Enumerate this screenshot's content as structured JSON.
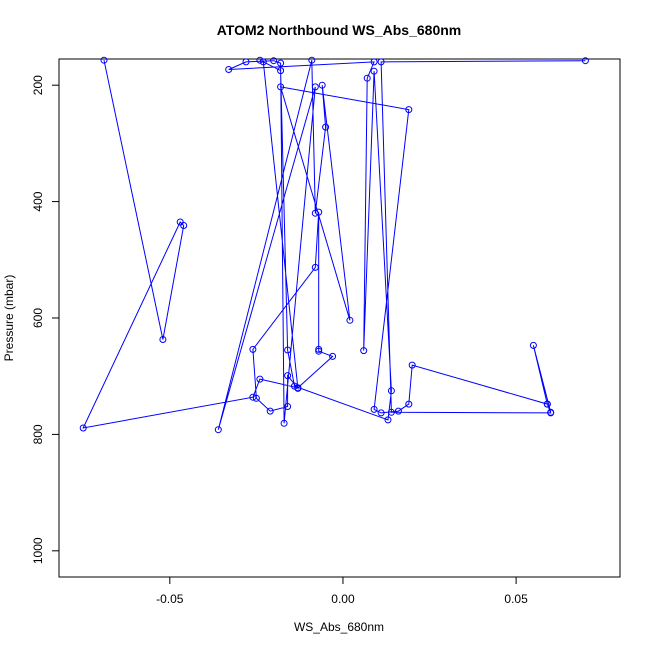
{
  "chart_data": {
    "type": "line",
    "title": "ATOM2 Northbound WS_Abs_680nm",
    "xlabel": "WS_Abs_680nm",
    "ylabel": "Pressure (mbar)",
    "xlim": [
      -0.082,
      0.08
    ],
    "ylim": [
      1045,
      155
    ],
    "y_axis_inverted": true,
    "x_ticks": [
      -0.05,
      0.0,
      0.05
    ],
    "x_tick_labels": [
      "-0.05",
      "0.00",
      "0.05"
    ],
    "y_ticks": [
      200,
      400,
      600,
      800,
      1000
    ],
    "y_tick_labels": [
      "200",
      "400",
      "600",
      "800",
      "1000"
    ],
    "grid": false,
    "legend": "none",
    "series_color": "#0000ff",
    "series": [
      {
        "x": [
          -0.069,
          -0.052,
          -0.046,
          -0.047,
          -0.075,
          -0.026,
          -0.024,
          -0.013,
          -0.003,
          -0.007,
          -0.007,
          -0.007,
          -0.008,
          -0.026,
          -0.025,
          -0.021,
          -0.016,
          -0.016,
          -0.013,
          -0.023,
          -0.024,
          -0.018,
          -0.016,
          -0.014,
          0.013,
          0.014,
          0.009,
          0.006,
          0.007,
          0.009,
          -0.033,
          -0.028,
          -0.02,
          -0.018,
          -0.017,
          -0.008,
          -0.036,
          -0.009,
          -0.008,
          -0.005,
          -0.006,
          0.002,
          -0.018,
          0.019,
          0.009,
          0.011,
          0.016,
          0.019,
          0.02,
          0.059,
          0.06,
          0.055,
          0.059,
          0.06,
          0.014,
          0.011,
          0.07
        ],
        "y": [
          157,
          637,
          441,
          435,
          789,
          736,
          705,
          720,
          666,
          657,
          654,
          418,
          513,
          654,
          738,
          760,
          752,
          699,
          721,
          160,
          157,
          175,
          655,
          717,
          775,
          725,
          176,
          656,
          188,
          160,
          173,
          160,
          158,
          162,
          781,
          203,
          792,
          157,
          420,
          272,
          200,
          604,
          203,
          242,
          757,
          763,
          760,
          748,
          681,
          748,
          762,
          647,
          748,
          763,
          762,
          160,
          158
        ]
      }
    ]
  }
}
